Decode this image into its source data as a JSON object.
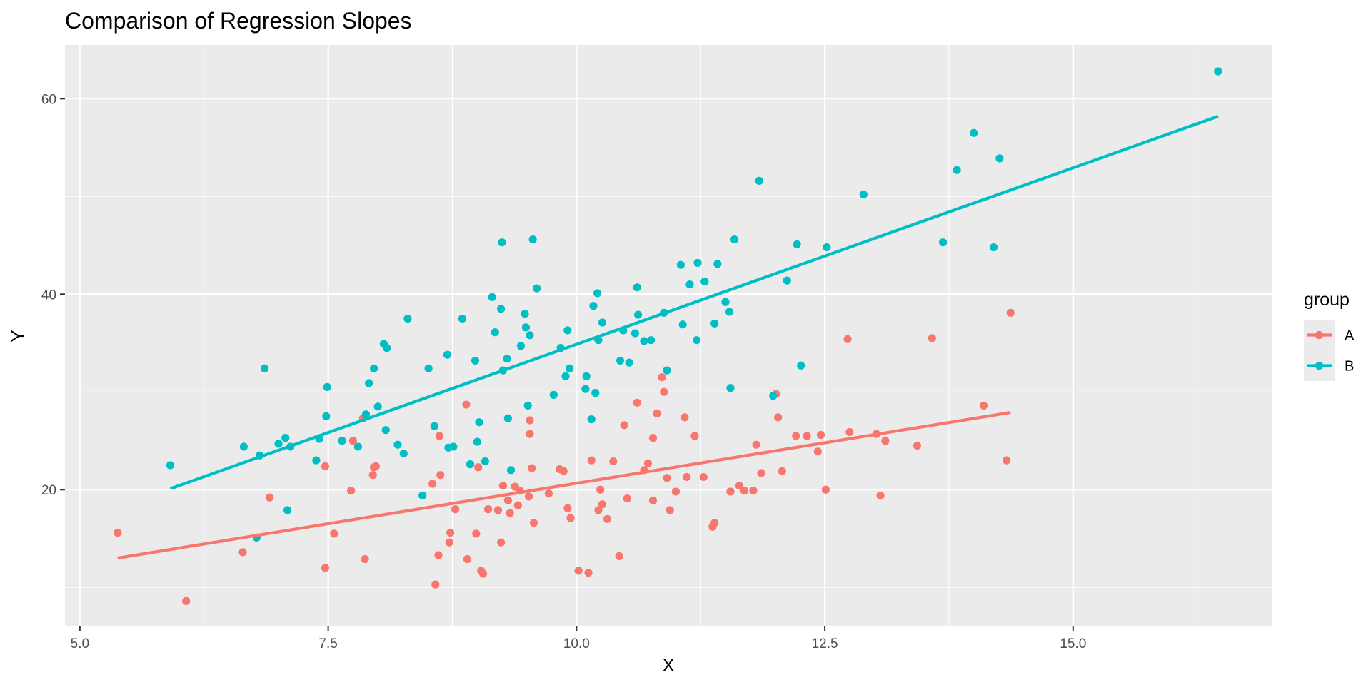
{
  "chart_data": {
    "type": "scatter",
    "title": "Comparison of Regression Slopes",
    "xlabel": "X",
    "ylabel": "Y",
    "xlim": [
      4.85,
      17.0
    ],
    "ylim": [
      6.0,
      65.5
    ],
    "x_ticks": [
      5.0,
      7.5,
      10.0,
      12.5,
      15.0
    ],
    "x_tick_labels": [
      "5.0",
      "7.5",
      "10.0",
      "12.5",
      "15.0"
    ],
    "y_ticks": [
      20,
      40,
      60
    ],
    "y_tick_labels": [
      "20",
      "40",
      "60"
    ],
    "grid": true,
    "legend": {
      "title": "group",
      "placement": "right",
      "entries": [
        "A",
        "B"
      ]
    },
    "series": [
      {
        "name": "A",
        "color": "#F8766D",
        "fit_line": {
          "x": [
            5.38,
            14.37
          ],
          "y": [
            13.0,
            27.9
          ]
        },
        "points": [
          [
            5.38,
            15.6
          ],
          [
            6.07,
            8.6
          ],
          [
            6.64,
            13.6
          ],
          [
            6.91,
            19.2
          ],
          [
            7.47,
            22.4
          ],
          [
            7.47,
            12.0
          ],
          [
            7.56,
            15.5
          ],
          [
            7.73,
            19.9
          ],
          [
            7.75,
            25.0
          ],
          [
            7.85,
            27.3
          ],
          [
            7.87,
            12.9
          ],
          [
            7.95,
            21.5
          ],
          [
            7.96,
            22.3
          ],
          [
            7.98,
            22.4
          ],
          [
            8.55,
            20.6
          ],
          [
            8.58,
            10.3
          ],
          [
            8.61,
            13.3
          ],
          [
            8.62,
            25.5
          ],
          [
            8.63,
            21.5
          ],
          [
            8.72,
            14.6
          ],
          [
            8.73,
            15.6
          ],
          [
            8.78,
            18.0
          ],
          [
            8.89,
            28.7
          ],
          [
            8.9,
            12.9
          ],
          [
            8.99,
            15.5
          ],
          [
            9.01,
            22.3
          ],
          [
            9.04,
            11.7
          ],
          [
            9.06,
            11.4
          ],
          [
            9.11,
            18.0
          ],
          [
            9.21,
            17.9
          ],
          [
            9.24,
            14.6
          ],
          [
            9.26,
            20.4
          ],
          [
            9.31,
            18.9
          ],
          [
            9.33,
            17.6
          ],
          [
            9.38,
            20.3
          ],
          [
            9.41,
            18.4
          ],
          [
            9.43,
            19.9
          ],
          [
            9.52,
            19.3
          ],
          [
            9.53,
            27.1
          ],
          [
            9.53,
            25.7
          ],
          [
            9.55,
            22.2
          ],
          [
            9.57,
            16.6
          ],
          [
            9.72,
            19.6
          ],
          [
            9.83,
            22.1
          ],
          [
            9.87,
            21.9
          ],
          [
            9.91,
            18.1
          ],
          [
            9.94,
            17.1
          ],
          [
            10.02,
            11.7
          ],
          [
            10.12,
            11.5
          ],
          [
            10.15,
            23.0
          ],
          [
            10.22,
            17.9
          ],
          [
            10.24,
            20.0
          ],
          [
            10.26,
            18.5
          ],
          [
            10.31,
            17.0
          ],
          [
            10.37,
            22.9
          ],
          [
            10.43,
            13.2
          ],
          [
            10.48,
            26.6
          ],
          [
            10.51,
            19.1
          ],
          [
            10.61,
            28.9
          ],
          [
            10.68,
            22.0
          ],
          [
            10.72,
            22.7
          ],
          [
            10.77,
            18.9
          ],
          [
            10.77,
            25.3
          ],
          [
            10.81,
            27.8
          ],
          [
            10.86,
            31.5
          ],
          [
            10.88,
            30.0
          ],
          [
            10.91,
            21.2
          ],
          [
            10.94,
            17.9
          ],
          [
            11.0,
            19.8
          ],
          [
            11.09,
            27.4
          ],
          [
            11.11,
            21.3
          ],
          [
            11.19,
            25.5
          ],
          [
            11.28,
            21.3
          ],
          [
            11.37,
            16.2
          ],
          [
            11.39,
            16.6
          ],
          [
            11.55,
            19.8
          ],
          [
            11.64,
            20.4
          ],
          [
            11.69,
            19.9
          ],
          [
            11.78,
            19.9
          ],
          [
            11.81,
            24.6
          ],
          [
            11.86,
            21.7
          ],
          [
            12.01,
            29.8
          ],
          [
            12.03,
            27.4
          ],
          [
            12.07,
            21.9
          ],
          [
            12.21,
            25.5
          ],
          [
            12.32,
            25.5
          ],
          [
            12.43,
            23.9
          ],
          [
            12.46,
            25.6
          ],
          [
            12.51,
            20.0
          ],
          [
            12.73,
            35.4
          ],
          [
            12.75,
            25.9
          ],
          [
            13.02,
            25.7
          ],
          [
            13.06,
            19.4
          ],
          [
            13.11,
            25.0
          ],
          [
            13.43,
            24.5
          ],
          [
            13.58,
            35.5
          ],
          [
            14.1,
            28.6
          ],
          [
            14.33,
            23.0
          ],
          [
            14.37,
            38.1
          ]
        ]
      },
      {
        "name": "B",
        "color": "#00BFC4",
        "fit_line": {
          "x": [
            5.91,
            16.46
          ],
          "y": [
            20.1,
            58.2
          ]
        },
        "points": [
          [
            5.91,
            22.5
          ],
          [
            6.65,
            24.4
          ],
          [
            6.78,
            15.1
          ],
          [
            6.81,
            23.5
          ],
          [
            6.86,
            32.4
          ],
          [
            7.0,
            24.7
          ],
          [
            7.07,
            25.3
          ],
          [
            7.09,
            17.9
          ],
          [
            7.12,
            24.4
          ],
          [
            7.38,
            23.0
          ],
          [
            7.41,
            25.2
          ],
          [
            7.48,
            27.5
          ],
          [
            7.49,
            30.5
          ],
          [
            7.64,
            25.0
          ],
          [
            7.8,
            24.4
          ],
          [
            7.88,
            27.7
          ],
          [
            7.91,
            30.9
          ],
          [
            7.96,
            32.4
          ],
          [
            8.0,
            28.5
          ],
          [
            8.06,
            34.9
          ],
          [
            8.08,
            26.1
          ],
          [
            8.09,
            34.5
          ],
          [
            8.2,
            24.6
          ],
          [
            8.26,
            23.7
          ],
          [
            8.3,
            37.5
          ],
          [
            8.45,
            19.4
          ],
          [
            8.51,
            32.4
          ],
          [
            8.57,
            26.5
          ],
          [
            8.7,
            33.8
          ],
          [
            8.71,
            24.3
          ],
          [
            8.76,
            24.4
          ],
          [
            8.85,
            37.5
          ],
          [
            8.93,
            22.6
          ],
          [
            8.98,
            33.2
          ],
          [
            9.0,
            24.9
          ],
          [
            9.02,
            26.9
          ],
          [
            9.08,
            22.9
          ],
          [
            9.15,
            39.7
          ],
          [
            9.18,
            36.1
          ],
          [
            9.24,
            38.5
          ],
          [
            9.25,
            45.3
          ],
          [
            9.26,
            32.2
          ],
          [
            9.3,
            33.4
          ],
          [
            9.31,
            27.3
          ],
          [
            9.34,
            22.0
          ],
          [
            9.44,
            34.7
          ],
          [
            9.48,
            38.0
          ],
          [
            9.49,
            36.6
          ],
          [
            9.51,
            28.6
          ],
          [
            9.53,
            35.8
          ],
          [
            9.56,
            45.6
          ],
          [
            9.6,
            40.6
          ],
          [
            9.77,
            29.7
          ],
          [
            9.84,
            34.5
          ],
          [
            9.89,
            31.6
          ],
          [
            9.91,
            36.3
          ],
          [
            9.93,
            32.4
          ],
          [
            10.09,
            30.3
          ],
          [
            10.1,
            31.6
          ],
          [
            10.15,
            27.2
          ],
          [
            10.17,
            38.8
          ],
          [
            10.19,
            29.9
          ],
          [
            10.21,
            40.1
          ],
          [
            10.22,
            35.3
          ],
          [
            10.26,
            37.1
          ],
          [
            10.44,
            33.2
          ],
          [
            10.47,
            36.3
          ],
          [
            10.53,
            33.0
          ],
          [
            10.59,
            36.0
          ],
          [
            10.61,
            40.7
          ],
          [
            10.62,
            37.9
          ],
          [
            10.68,
            35.2
          ],
          [
            10.75,
            35.3
          ],
          [
            10.88,
            38.1
          ],
          [
            10.91,
            32.2
          ],
          [
            11.05,
            43.0
          ],
          [
            11.07,
            36.9
          ],
          [
            11.14,
            41.0
          ],
          [
            11.21,
            35.3
          ],
          [
            11.22,
            43.2
          ],
          [
            11.29,
            41.3
          ],
          [
            11.39,
            37.0
          ],
          [
            11.42,
            43.1
          ],
          [
            11.5,
            39.2
          ],
          [
            11.54,
            38.2
          ],
          [
            11.55,
            30.4
          ],
          [
            11.59,
            45.6
          ],
          [
            11.84,
            51.6
          ],
          [
            11.98,
            29.6
          ],
          [
            12.12,
            41.4
          ],
          [
            12.22,
            45.1
          ],
          [
            12.26,
            32.7
          ],
          [
            12.52,
            44.8
          ],
          [
            12.89,
            50.2
          ],
          [
            13.69,
            45.3
          ],
          [
            13.83,
            52.7
          ],
          [
            14.0,
            56.5
          ],
          [
            14.2,
            44.8
          ],
          [
            14.26,
            53.9
          ],
          [
            16.46,
            62.8
          ]
        ]
      }
    ]
  }
}
